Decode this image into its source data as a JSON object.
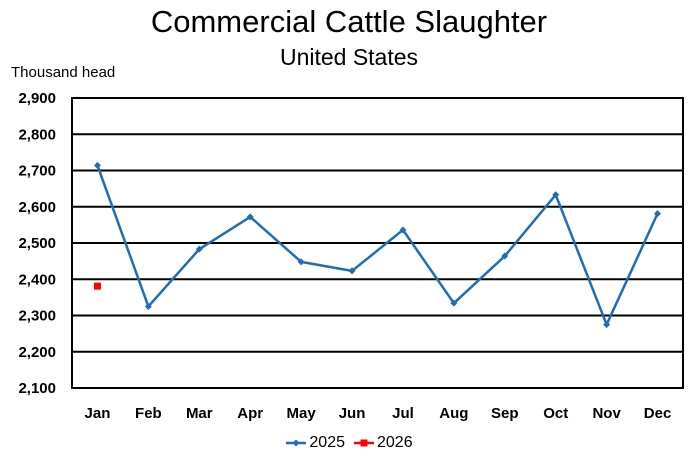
{
  "chart_data": {
    "type": "line",
    "title": "Commercial Cattle Slaughter",
    "subtitle": "United States",
    "xlabel": "",
    "ylabel": "Thousand head",
    "categories": [
      "Jan",
      "Feb",
      "Mar",
      "Apr",
      "May",
      "Jun",
      "Jul",
      "Aug",
      "Sep",
      "Oct",
      "Nov",
      "Dec"
    ],
    "ylim": [
      2100,
      2900
    ],
    "yticks": [
      2100,
      2200,
      2300,
      2400,
      2500,
      2600,
      2700,
      2800,
      2900
    ],
    "ytick_labels": [
      "2,100",
      "2,200",
      "2,300",
      "2,400",
      "2,500",
      "2,600",
      "2,700",
      "2,800",
      "2,900"
    ],
    "grid": true,
    "legend_position": "bottom",
    "series": [
      {
        "name": "2025",
        "color": "#1F6DB6",
        "marker": "diamond",
        "values": [
          2714,
          2325,
          2483,
          2572,
          2448,
          2423,
          2536,
          2334,
          2464,
          2633,
          2275,
          2581
        ]
      },
      {
        "name": "2026",
        "color": "#FF0000",
        "marker": "square",
        "values": [
          2381,
          null,
          null,
          null,
          null,
          null,
          null,
          null,
          null,
          null,
          null,
          null
        ]
      }
    ]
  }
}
